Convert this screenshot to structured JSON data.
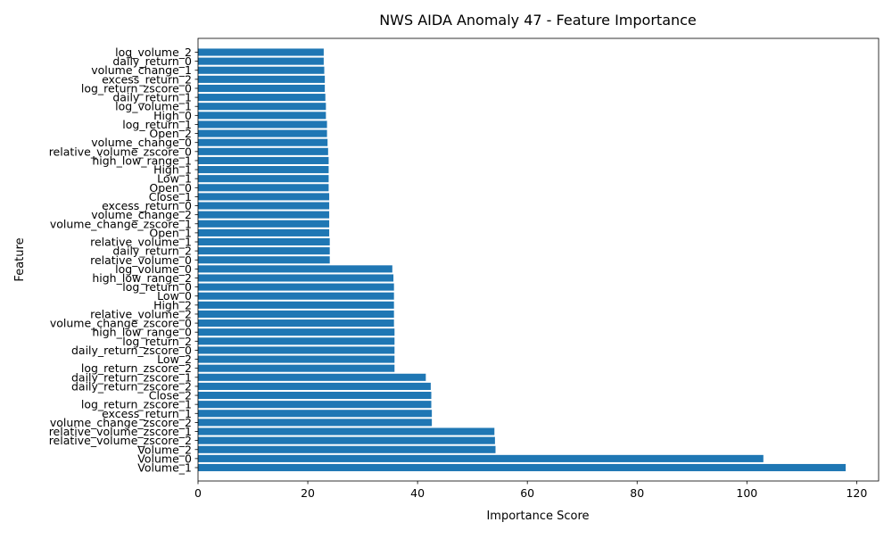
{
  "chart_data": {
    "type": "bar",
    "orientation": "horizontal",
    "title": "NWS AIDA Anomaly 47 - Feature Importance",
    "xlabel": "Importance Score",
    "ylabel": "Feature",
    "xlim": [
      0,
      124
    ],
    "xticks": [
      0,
      20,
      40,
      60,
      80,
      100,
      120
    ],
    "grid": false,
    "bar_color": "#1f77b4",
    "categories": [
      "Volume_1",
      "Volume_0",
      "Volume_2",
      "relative_volume_zscore_2",
      "relative_volume_zscore_1",
      "volume_change_zscore_2",
      "excess_return_1",
      "log_return_zscore_1",
      "Close_2",
      "daily_return_zscore_2",
      "daily_return_zscore_1",
      "log_return_zscore_2",
      "Low_2",
      "daily_return_zscore_0",
      "log_return_2",
      "high_low_range_0",
      "volume_change_zscore_0",
      "relative_volume_2",
      "High_2",
      "Low_0",
      "log_return_0",
      "high_low_range_2",
      "log_volume_0",
      "relative_volume_0",
      "daily_return_2",
      "relative_volume_1",
      "Open_1",
      "volume_change_zscore_1",
      "volume_change_2",
      "excess_return_0",
      "Close_1",
      "Open_0",
      "Low_1",
      "High_1",
      "high_low_range_1",
      "relative_volume_zscore_0",
      "volume_change_0",
      "Open_2",
      "log_return_1",
      "High_0",
      "log_volume_1",
      "daily_return_1",
      "log_return_zscore_0",
      "excess_return_2",
      "volume_change_1",
      "daily_return_0",
      "log_volume_2"
    ],
    "values": [
      118.0,
      103.0,
      54.2,
      54.1,
      54.0,
      42.6,
      42.6,
      42.5,
      42.5,
      42.4,
      41.5,
      35.8,
      35.8,
      35.8,
      35.8,
      35.8,
      35.7,
      35.7,
      35.7,
      35.7,
      35.7,
      35.6,
      35.4,
      24.0,
      24.0,
      24.0,
      23.9,
      23.9,
      23.9,
      23.9,
      23.9,
      23.8,
      23.8,
      23.8,
      23.8,
      23.7,
      23.6,
      23.5,
      23.5,
      23.3,
      23.3,
      23.2,
      23.1,
      23.1,
      23.0,
      22.9,
      22.9
    ]
  }
}
